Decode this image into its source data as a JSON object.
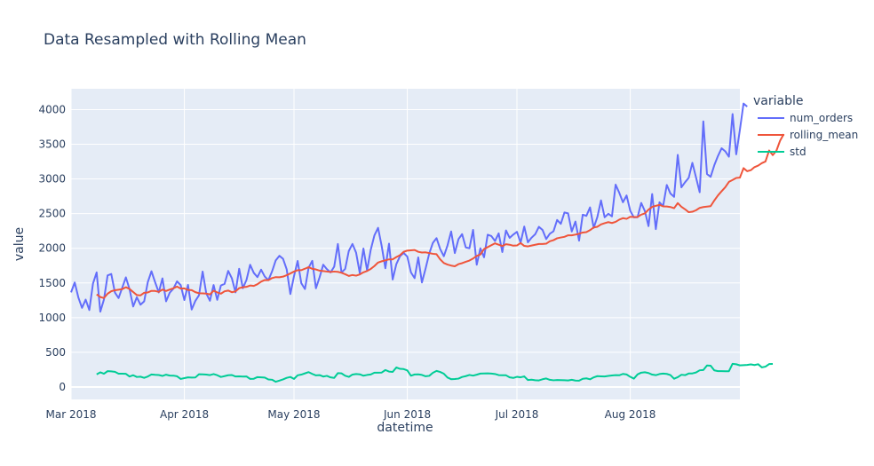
{
  "chart_data": {
    "type": "line",
    "title": "Data Resampled with Rolling Mean",
    "xlabel": "datetime",
    "ylabel": "value",
    "x_start": "2018-03-01",
    "x_end": "2018-08-31",
    "xlim": [
      "2018-03-01",
      "2018-08-31"
    ],
    "ylim": [
      -180,
      4300
    ],
    "x_ticks": [
      {
        "date": "2018-03-01",
        "label": "Mar 2018"
      },
      {
        "date": "2018-04-01",
        "label": "Apr 2018"
      },
      {
        "date": "2018-05-01",
        "label": "May 2018"
      },
      {
        "date": "2018-06-01",
        "label": "Jun 2018"
      },
      {
        "date": "2018-07-01",
        "label": "Jul 2018"
      },
      {
        "date": "2018-08-01",
        "label": "Aug 2018"
      }
    ],
    "y_ticks": [
      0,
      500,
      1000,
      1500,
      2000,
      2500,
      3000,
      3500,
      4000
    ],
    "legend": {
      "title": "variable",
      "position": "right"
    },
    "grid": true,
    "series": [
      {
        "name": "num_orders",
        "color": "#636efa",
        "values": [
          1364,
          1506,
          1290,
          1141,
          1259,
          1109,
          1491,
          1652,
          1085,
          1261,
          1608,
          1629,
          1361,
          1282,
          1430,
          1580,
          1410,
          1160,
          1293,
          1186,
          1234,
          1512,
          1668,
          1511,
          1363,
          1566,
          1235,
          1359,
          1418,
          1523,
          1468,
          1254,
          1471,
          1116,
          1240,
          1322,
          1664,
          1348,
          1243,
          1470,
          1256,
          1463,
          1486,
          1674,
          1567,
          1364,
          1704,
          1424,
          1543,
          1762,
          1645,
          1584,
          1691,
          1592,
          1541,
          1666,
          1825,
          1891,
          1848,
          1696,
          1340,
          1598,
          1817,
          1496,
          1412,
          1720,
          1818,
          1423,
          1581,
          1763,
          1698,
          1652,
          1734,
          2061,
          1649,
          1703,
          1961,
          2062,
          1935,
          1642,
          1996,
          1682,
          1979,
          2185,
          2295,
          2030,
          1712,
          2067,
          1550,
          1771,
          1885,
          1932,
          1880,
          1652,
          1569,
          1868,
          1507,
          1706,
          1923,
          2078,
          2146,
          1989,
          1885,
          2040,
          2242,
          1931,
          2131,
          2204,
          2012,
          2000,
          2265,
          1762,
          2000,
          1870,
          2196,
          2176,
          2104,
          2215,
          1945,
          2257,
          2150,
          2197,
          2237,
          2081,
          2313,
          2086,
          2152,
          2202,
          2309,
          2264,
          2133,
          2210,
          2245,
          2408,
          2352,
          2516,
          2503,
          2242,
          2385,
          2110,
          2484,
          2467,
          2589,
          2294,
          2449,
          2690,
          2446,
          2497,
          2460,
          2918,
          2800,
          2663,
          2761,
          2541,
          2445,
          2447,
          2654,
          2537,
          2319,
          2782,
          2276,
          2663,
          2608,
          2913,
          2789,
          2741,
          3347,
          2878,
          2952,
          3015,
          3232,
          3021,
          2808,
          3830,
          3070,
          3031,
          3197,
          3330,
          3442,
          3398,
          3320,
          3935,
          3354,
          3706,
          4087,
          4042
        ]
      },
      {
        "name": "rolling_mean",
        "color": "#ef553b",
        "start_index": 7,
        "values": [
          1335,
          1297,
          1282,
          1345,
          1380,
          1395,
          1403,
          1411,
          1438,
          1413,
          1369,
          1325,
          1320,
          1358,
          1363,
          1385,
          1384,
          1371,
          1404,
          1384,
          1405,
          1422,
          1447,
          1419,
          1421,
          1399,
          1396,
          1367,
          1351,
          1350,
          1347,
          1334,
          1388,
          1364,
          1345,
          1379,
          1390,
          1366,
          1378,
          1425,
          1438,
          1444,
          1463,
          1457,
          1482,
          1518,
          1542,
          1540,
          1570,
          1584,
          1582,
          1591,
          1611,
          1637,
          1664,
          1684,
          1684,
          1705,
          1728,
          1703,
          1695,
          1677,
          1671,
          1664,
          1658,
          1664,
          1660,
          1646,
          1626,
          1601,
          1614,
          1605,
          1623,
          1653,
          1672,
          1702,
          1743,
          1794,
          1812,
          1826,
          1840,
          1840,
          1873,
          1900,
          1948,
          1966,
          1970,
          1975,
          1949,
          1938,
          1941,
          1931,
          1920,
          1914,
          1840,
          1787,
          1765,
          1750,
          1740,
          1771,
          1785,
          1805,
          1823,
          1852,
          1890,
          1911,
          1989,
          2016,
          2044,
          2071,
          2051,
          2032,
          2058,
          2051,
          2037,
          2040,
          2075,
          2034,
          2027,
          2039,
          2050,
          2062,
          2062,
          2066,
          2101,
          2117,
          2144,
          2155,
          2165,
          2187,
          2187,
          2197,
          2209,
          2227,
          2233,
          2261,
          2300,
          2310,
          2344,
          2362,
          2377,
          2364,
          2381,
          2413,
          2434,
          2424,
          2454,
          2451,
          2451,
          2485,
          2502,
          2557,
          2597,
          2612,
          2625,
          2604,
          2603,
          2595,
          2578,
          2651,
          2598,
          2562,
          2520,
          2527,
          2548,
          2582,
          2594,
          2601,
          2607,
          2689,
          2762,
          2822,
          2880,
          2957,
          2985,
          3013,
          3018,
          3155,
          3111,
          3126,
          3170,
          3192,
          3227,
          3251,
          3410,
          3343,
          3407,
          3551,
          3645
        ]
      },
      {
        "name": "std",
        "color": "#00cc96",
        "start_index": 7,
        "values": [
          182,
          211,
          191,
          228,
          225,
          218,
          191,
          192,
          189,
          150,
          169,
          144,
          148,
          131,
          151,
          180,
          175,
          172,
          159,
          177,
          164,
          163,
          154,
          115,
          127,
          138,
          135,
          136,
          183,
          182,
          178,
          171,
          186,
          169,
          144,
          156,
          169,
          172,
          151,
          152,
          149,
          151,
          116,
          118,
          142,
          138,
          135,
          108,
          104,
          75,
          91,
          109,
          131,
          144,
          116,
          168,
          178,
          196,
          214,
          188,
          167,
          171,
          150,
          160,
          138,
          131,
          199,
          196,
          162,
          145,
          179,
          187,
          182,
          162,
          173,
          180,
          206,
          206,
          208,
          244,
          222,
          217,
          281,
          261,
          258,
          239,
          162,
          180,
          182,
          173,
          154,
          160,
          204,
          231,
          216,
          191,
          136,
          112,
          114,
          120,
          144,
          156,
          173,
          163,
          177,
          193,
          194,
          196,
          193,
          187,
          171,
          168,
          168,
          138,
          130,
          146,
          139,
          152,
          100,
          105,
          97,
          94,
          111,
          122,
          103,
          96,
          100,
          99,
          97,
          94,
          103,
          92,
          91,
          118,
          124,
          110,
          138,
          156,
          153,
          151,
          159,
          165,
          171,
          168,
          188,
          180,
          146,
          120,
          181,
          206,
          212,
          201,
          178,
          170,
          186,
          193,
          188,
          171,
          118,
          141,
          176,
          170,
          194,
          195,
          209,
          240,
          244,
          309,
          306,
          239,
          228,
          228,
          227,
          227,
          334,
          327,
          311,
          315,
          318,
          326,
          316,
          328,
          282,
          293,
          330,
          332
        ]
      }
    ]
  }
}
